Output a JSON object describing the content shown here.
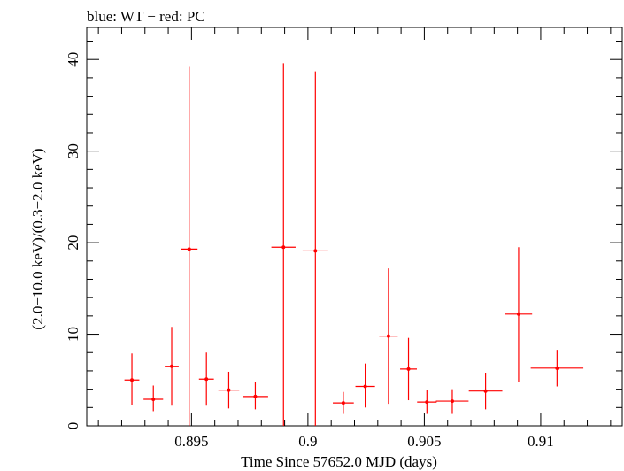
{
  "chart_data": {
    "type": "scatter",
    "title": "blue: WT − red: PC",
    "xlabel": "Time Since 57652.0 MJD (days)",
    "ylabel": "(2.0−10.0 keV)/(0.3−2.0 keV)",
    "xlim": [
      0.8905,
      0.9135
    ],
    "ylim": [
      0,
      43.5
    ],
    "x_ticks": [
      {
        "value": 0.895,
        "label": "0.895"
      },
      {
        "value": 0.9,
        "label": "0.9"
      },
      {
        "value": 0.905,
        "label": "0.905"
      },
      {
        "value": 0.91,
        "label": "0.91"
      }
    ],
    "y_ticks": [
      {
        "value": 0,
        "label": "0"
      },
      {
        "value": 10,
        "label": "10"
      },
      {
        "value": 20,
        "label": "20"
      },
      {
        "value": 30,
        "label": "30"
      },
      {
        "value": 40,
        "label": "40"
      }
    ],
    "colors": {
      "series": "#ff0000",
      "axes": "#000000"
    },
    "grid": false,
    "series": [
      {
        "name": "PC",
        "color": "#ff0000",
        "points": [
          {
            "x": 0.89244,
            "xerr": 0.00032,
            "y": 5.0,
            "ylo": 2.3,
            "yhi": 7.9
          },
          {
            "x": 0.89336,
            "xerr": 0.00042,
            "y": 2.9,
            "ylo": 1.6,
            "yhi": 4.4
          },
          {
            "x": 0.89415,
            "xerr": 0.0003,
            "y": 6.5,
            "ylo": 2.2,
            "yhi": 10.8
          },
          {
            "x": 0.8949,
            "xerr": 0.00036,
            "y": 19.3,
            "ylo": 0.0,
            "yhi": 39.2
          },
          {
            "x": 0.89564,
            "xerr": 0.00032,
            "y": 5.1,
            "ylo": 2.2,
            "yhi": 8.0
          },
          {
            "x": 0.8966,
            "xerr": 0.00045,
            "y": 3.9,
            "ylo": 1.9,
            "yhi": 5.9
          },
          {
            "x": 0.89774,
            "xerr": 0.00055,
            "y": 3.2,
            "ylo": 1.8,
            "yhi": 4.8
          },
          {
            "x": 0.89895,
            "xerr": 0.00052,
            "y": 19.5,
            "ylo": 0.0,
            "yhi": 39.6
          },
          {
            "x": 0.90032,
            "xerr": 0.00055,
            "y": 19.1,
            "ylo": 0.0,
            "yhi": 38.7
          },
          {
            "x": 0.90152,
            "xerr": 0.00045,
            "y": 2.5,
            "ylo": 1.3,
            "yhi": 3.7
          },
          {
            "x": 0.90246,
            "xerr": 0.00042,
            "y": 4.3,
            "ylo": 2.0,
            "yhi": 6.8
          },
          {
            "x": 0.90346,
            "xerr": 0.0004,
            "y": 9.8,
            "ylo": 2.4,
            "yhi": 17.2
          },
          {
            "x": 0.90432,
            "xerr": 0.00036,
            "y": 6.2,
            "ylo": 2.8,
            "yhi": 9.6
          },
          {
            "x": 0.90511,
            "xerr": 0.00042,
            "y": 2.6,
            "ylo": 1.3,
            "yhi": 3.9
          },
          {
            "x": 0.9062,
            "xerr": 0.0007,
            "y": 2.7,
            "ylo": 1.3,
            "yhi": 4.0
          },
          {
            "x": 0.90763,
            "xerr": 0.00072,
            "y": 3.8,
            "ylo": 1.8,
            "yhi": 5.8
          },
          {
            "x": 0.90905,
            "xerr": 0.00058,
            "y": 12.2,
            "ylo": 4.8,
            "yhi": 19.5
          },
          {
            "x": 0.9107,
            "xerr": 0.00113,
            "y": 6.3,
            "ylo": 4.3,
            "yhi": 8.3
          }
        ]
      }
    ]
  }
}
